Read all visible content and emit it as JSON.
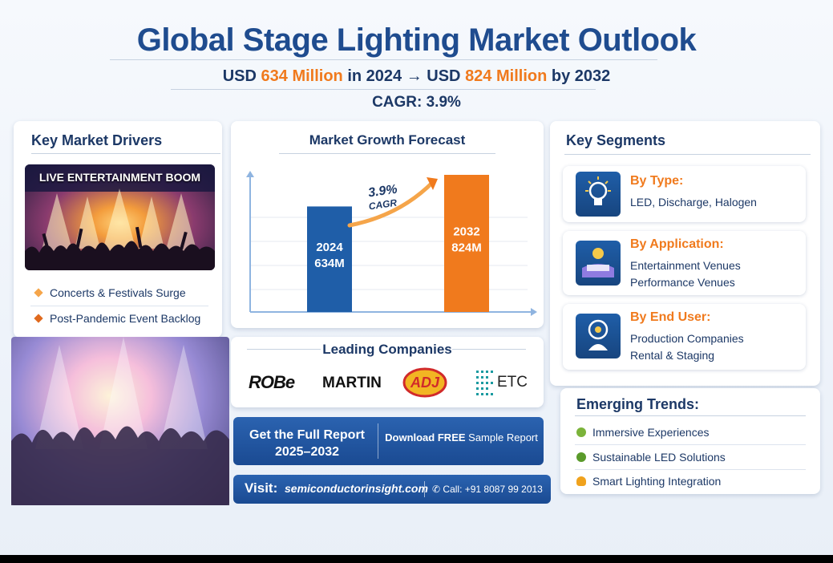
{
  "header": {
    "title": "Global Stage Lighting Market Outlook",
    "sub_pre": "USD",
    "sub_val1": "634 Million",
    "sub_mid": "in 2024 → USD",
    "sub_val2": "824 Million",
    "sub_post": "by 2032",
    "cagr": "CAGR: 3.9%"
  },
  "drivers": {
    "title": "Key Market Drivers",
    "image_caption": "LIVE ENTERTAINMENT BOOM",
    "items": [
      "Concerts & Festivals Surge",
      "Post-Pandemic Event Backlog"
    ]
  },
  "forecast": {
    "title": "Market Growth Forecast",
    "cagr_label": "3.9%",
    "cagr_word": "CAGR"
  },
  "chart_data": {
    "type": "bar",
    "title": "Market Growth Forecast",
    "categories": [
      "2024",
      "2032"
    ],
    "values": [
      634,
      824
    ],
    "data_labels": [
      "634M",
      "824M"
    ],
    "unit": "M",
    "colors": [
      "#1f5ea8",
      "#f07a1d"
    ],
    "annotation": "3.9% CAGR",
    "grid": true
  },
  "companies": {
    "title": "Leading Companies",
    "logos": [
      "ROBe",
      "MARTIN",
      "ADJ",
      "ETC"
    ]
  },
  "cta": {
    "line1": "Get the Full Report",
    "line2": "2025–2032",
    "download_pre": "Download",
    "download_bold": "FREE",
    "download_post": "Sample Report"
  },
  "visit": {
    "label": "Visit:",
    "url": "semiconductorinsight.com",
    "call": "Call: +91 8087 99 2013"
  },
  "segments": {
    "title": "Key Segments",
    "items": [
      {
        "title": "By Type:",
        "line1": "LED, Discharge, Halogen",
        "line2": "",
        "icon": "lightbulb-icon"
      },
      {
        "title": "By Application:",
        "line1": "Entertainment Venues",
        "line2": "Performance Venues",
        "icon": "theater-icon"
      },
      {
        "title": "By End User:",
        "line1": "Production Companies",
        "line2": "Rental & Staging",
        "icon": "users-icon"
      }
    ]
  },
  "trends": {
    "title": "Emerging Trends:",
    "items": [
      "Immersive Experiences",
      "Sustainable LED Solutions",
      "Smart Lighting Integration"
    ]
  },
  "colors": {
    "navy": "#1c3866",
    "blue": "#1f5ea8",
    "orange": "#f07a1d",
    "green": "#7bb33a"
  }
}
